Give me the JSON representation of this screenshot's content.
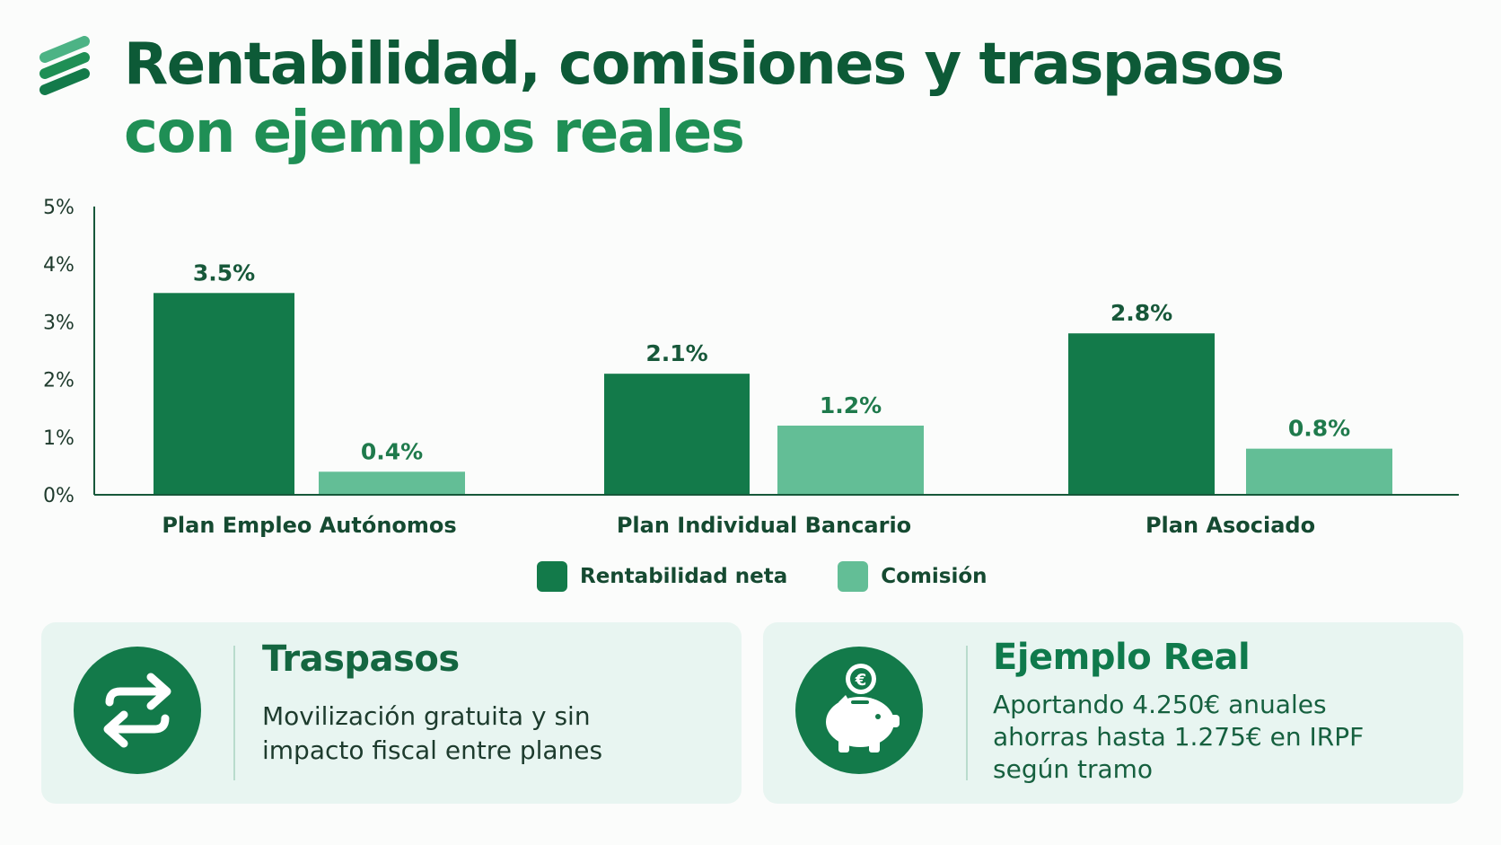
{
  "header": {
    "title_line1": "Rentabilidad, comisiones y traspasos",
    "title_line2": "con ejemplos reales",
    "logo_icon": "stacked-stripes-logo-icon"
  },
  "colors": {
    "dark_green": "#137a4a",
    "light_green": "#63be96",
    "title_dark": "#0d5a37",
    "title_light": "#1f8f55",
    "card_bg": "#e8f5f1"
  },
  "chart_data": {
    "type": "bar",
    "title": "",
    "xlabel": "",
    "ylabel": "",
    "categories": [
      "Plan Empleo Autónomos",
      "Plan Individual Bancario",
      "Plan Asociado"
    ],
    "series": [
      {
        "name": "Rentabilidad neta",
        "values": [
          3.5,
          2.1,
          2.8
        ],
        "labels": [
          "3.5%",
          "2.1%",
          "2.8%"
        ],
        "color": "#137a4a"
      },
      {
        "name": "Comisión",
        "values": [
          0.4,
          1.2,
          0.8
        ],
        "labels": [
          "0.4%",
          "1.2%",
          "0.8%"
        ],
        "color": "#63be96"
      }
    ],
    "ylim": [
      0,
      5
    ],
    "yticks": [
      0,
      1,
      2,
      3,
      4,
      5
    ],
    "ytick_labels": [
      "0%",
      "1%",
      "2%",
      "3%",
      "4%",
      "5%"
    ],
    "grid": false,
    "legend_position": "bottom-center"
  },
  "cards": [
    {
      "icon": "swap-arrows-icon",
      "title": "Traspasos",
      "text_lines": [
        "Movilización gratuita y sin",
        "impacto fiscal entre planes"
      ]
    },
    {
      "icon": "piggy-bank-euro-icon",
      "title": "Ejemplo Real",
      "text_lines": [
        "Aportando 4.250€ anuales",
        "ahorras hasta 1.275€ en IRPF",
        "según tramo"
      ]
    }
  ]
}
